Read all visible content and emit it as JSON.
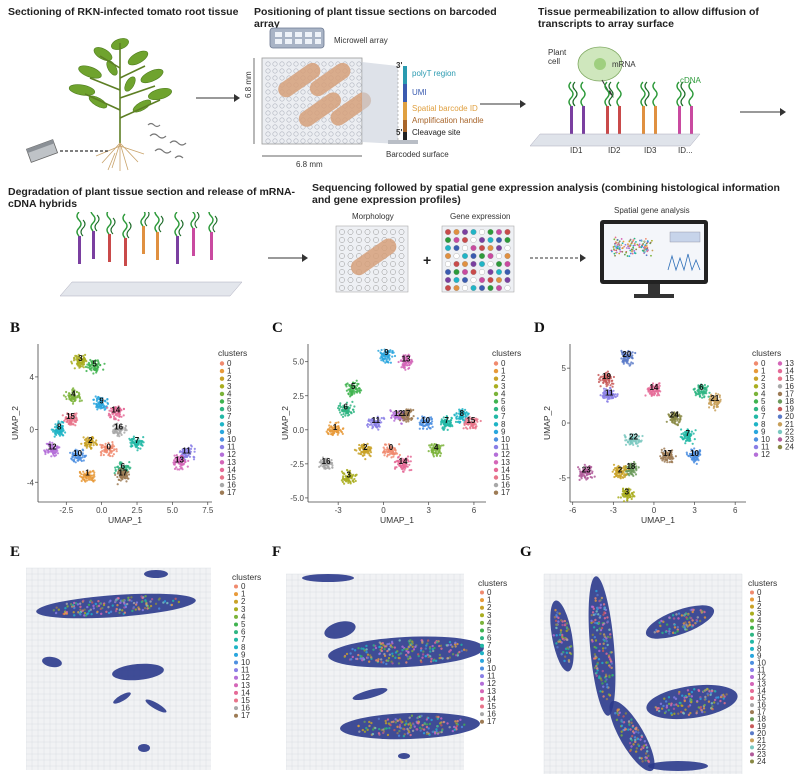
{
  "workflow": {
    "step1_title": "Sectioning of RKN-infected tomato root tissue",
    "step2_title": "Positioning of plant tissue sections on barcoded array",
    "step3_title": "Tissue permeabilization to allow diffusion of transcripts to array surface",
    "step4_title": "Degradation of plant tissue section and release of mRNA-cDNA hybrids",
    "step5_title": "Sequencing followed by spatial gene expression analysis (combining histological information and gene expression profiles)",
    "microwell_label": "Microwell array",
    "dim_vertical": "6.8 mm",
    "dim_horizontal": "6.8 mm",
    "probe_3prime": "3'",
    "probe_5prime": "5'",
    "probe_parts": [
      "polyT region",
      "UMI",
      "Spatial barcode ID",
      "Amplification handle",
      "Cleavage site"
    ],
    "barcoded_surface": "Barcoded surface",
    "plant_cell": "Plant cell",
    "mrna": "mRNA",
    "cdna": "cDNA",
    "ids": [
      "ID1",
      "ID2",
      "ID3",
      "ID..."
    ],
    "morphology": "Morphology",
    "gene_expression": "Gene expression",
    "plus": "+",
    "spatial_gene_analysis": "Spatial gene analysis"
  },
  "panels": {
    "B": "B",
    "C": "C",
    "D": "D",
    "E": "E",
    "F": "F",
    "G": "G"
  },
  "legend_title": "clusters",
  "colors": {
    "palette": [
      "#f08a6e",
      "#e89a3a",
      "#c9a227",
      "#a9ad1f",
      "#7bb33a",
      "#3fb34f",
      "#2fb583",
      "#22b8a6",
      "#1fb4c6",
      "#2aa6de",
      "#4d8fe0",
      "#8a7fe6",
      "#b46fd8",
      "#d466b8",
      "#e56a97",
      "#e8748a",
      "#a8a8a8",
      "#9d7b55",
      "#6b9a5a",
      "#c85a5a",
      "#5a7ac8",
      "#c8a05a",
      "#7ac8c0",
      "#b05a9a",
      "#888844"
    ],
    "tissue_blue": "#2b3a8c",
    "grid": "#d6d9df"
  },
  "chart_data": [
    {
      "type": "scatter",
      "panel": "B",
      "xlabel": "UMAP_1",
      "ylabel": "UMAP_2",
      "xticks": [
        "-2.5",
        "0.0",
        "2.5",
        "5.0",
        "7.5"
      ],
      "yticks": [
        "4",
        "0",
        "-4"
      ],
      "legend": [
        "0",
        "1",
        "2",
        "3",
        "4",
        "5",
        "6",
        "7",
        "8",
        "9",
        "10",
        "11",
        "12",
        "13",
        "14",
        "15",
        "16",
        "17"
      ],
      "cluster_labels": [
        {
          "label": "0",
          "x": 0.5,
          "y": -1.5
        },
        {
          "label": "1",
          "x": -1.0,
          "y": -3.5
        },
        {
          "label": "2",
          "x": -0.8,
          "y": -1.0
        },
        {
          "label": "3",
          "x": -1.5,
          "y": 5.2
        },
        {
          "label": "4",
          "x": -2.0,
          "y": 2.5
        },
        {
          "label": "5",
          "x": -0.5,
          "y": 4.8
        },
        {
          "label": "6",
          "x": 1.5,
          "y": -3.0
        },
        {
          "label": "7",
          "x": 2.5,
          "y": -1.0
        },
        {
          "label": "8",
          "x": -3.0,
          "y": 0.0
        },
        {
          "label": "9",
          "x": 0.0,
          "y": 2.0
        },
        {
          "label": "10",
          "x": -1.7,
          "y": -2.0
        },
        {
          "label": "11",
          "x": 6.0,
          "y": -1.8
        },
        {
          "label": "12",
          "x": -3.5,
          "y": -1.5
        },
        {
          "label": "13",
          "x": 5.5,
          "y": -2.5
        },
        {
          "label": "14",
          "x": 1.0,
          "y": 1.3
        },
        {
          "label": "15",
          "x": -2.2,
          "y": 0.8
        },
        {
          "label": "16",
          "x": 1.2,
          "y": 0.0
        },
        {
          "label": "17",
          "x": 1.5,
          "y": -3.5
        }
      ]
    },
    {
      "type": "scatter",
      "panel": "C",
      "xlabel": "UMAP_1",
      "ylabel": "UMAP_2",
      "xticks": [
        "-3",
        "0",
        "3",
        "6"
      ],
      "yticks": [
        "5.0",
        "2.5",
        "0.0",
        "-2.5",
        "-5.0"
      ],
      "legend": [
        "0",
        "1",
        "2",
        "3",
        "4",
        "5",
        "6",
        "7",
        "8",
        "9",
        "10",
        "11",
        "12",
        "13",
        "14",
        "15",
        "16",
        "17"
      ],
      "cluster_labels": [
        {
          "label": "0",
          "x": 0.5,
          "y": -1.5
        },
        {
          "label": "1",
          "x": -3.2,
          "y": 0.0
        },
        {
          "label": "2",
          "x": -1.2,
          "y": -1.5
        },
        {
          "label": "3",
          "x": -2.3,
          "y": -3.5
        },
        {
          "label": "4",
          "x": 3.5,
          "y": -1.5
        },
        {
          "label": "5",
          "x": -2.0,
          "y": 3.0
        },
        {
          "label": "6",
          "x": -2.5,
          "y": 1.5
        },
        {
          "label": "7",
          "x": 4.2,
          "y": 0.5
        },
        {
          "label": "8",
          "x": 5.2,
          "y": 1.0
        },
        {
          "label": "9",
          "x": 0.2,
          "y": 5.5
        },
        {
          "label": "10",
          "x": 2.8,
          "y": 0.5
        },
        {
          "label": "11",
          "x": -0.5,
          "y": 0.5
        },
        {
          "label": "12",
          "x": 1.0,
          "y": 1.0
        },
        {
          "label": "13",
          "x": 1.5,
          "y": 5.0
        },
        {
          "label": "14",
          "x": 1.3,
          "y": -2.5
        },
        {
          "label": "15",
          "x": 5.8,
          "y": 0.5
        },
        {
          "label": "16",
          "x": -3.8,
          "y": -2.5
        },
        {
          "label": "17",
          "x": 1.5,
          "y": 1.0
        }
      ]
    },
    {
      "type": "scatter",
      "panel": "D",
      "xlabel": "UMAP_1",
      "ylabel": "UMAP_2",
      "xticks": [
        "-6",
        "-3",
        "0",
        "3",
        "6"
      ],
      "yticks": [
        "5",
        "0",
        "-5"
      ],
      "legend": [
        "0",
        "1",
        "2",
        "3",
        "4",
        "5",
        "6",
        "7",
        "8",
        "9",
        "10",
        "11",
        "12",
        "13",
        "14",
        "15",
        "16",
        "17",
        "18",
        "19",
        "20",
        "21",
        "22",
        "23",
        "24"
      ],
      "cluster_labels": [
        {
          "label": "20",
          "x": -2.0,
          "y": 6.0
        },
        {
          "label": "19",
          "x": -3.5,
          "y": 4.0
        },
        {
          "label": "11",
          "x": -3.3,
          "y": 2.5
        },
        {
          "label": "14",
          "x": 0.0,
          "y": 3.0
        },
        {
          "label": "24",
          "x": 1.5,
          "y": 0.5
        },
        {
          "label": "21",
          "x": 4.5,
          "y": 2.0
        },
        {
          "label": "22",
          "x": -1.5,
          "y": -1.5
        },
        {
          "label": "7",
          "x": 2.5,
          "y": -1.2
        },
        {
          "label": "17",
          "x": 1.0,
          "y": -3.0
        },
        {
          "label": "10",
          "x": 3.0,
          "y": -3.0
        },
        {
          "label": "18",
          "x": -1.7,
          "y": -4.2
        },
        {
          "label": "2",
          "x": -2.5,
          "y": -4.5
        },
        {
          "label": "3",
          "x": -2.0,
          "y": -6.5
        },
        {
          "label": "23",
          "x": -5.0,
          "y": -4.5
        },
        {
          "label": "6",
          "x": 3.5,
          "y": 3.0
        }
      ]
    }
  ],
  "tissue_legends": {
    "E": [
      "0",
      "1",
      "2",
      "3",
      "4",
      "5",
      "6",
      "7",
      "8",
      "9",
      "10",
      "11",
      "12",
      "13",
      "14",
      "15",
      "16",
      "17"
    ],
    "F": [
      "0",
      "1",
      "2",
      "3",
      "4",
      "5",
      "6",
      "7",
      "8",
      "9",
      "10",
      "11",
      "12",
      "13",
      "14",
      "15",
      "16",
      "17"
    ],
    "G": [
      "0",
      "1",
      "2",
      "3",
      "4",
      "5",
      "6",
      "7",
      "8",
      "9",
      "10",
      "11",
      "12",
      "13",
      "14",
      "15",
      "16",
      "17",
      "18",
      "19",
      "20",
      "21",
      "22",
      "23",
      "24"
    ]
  }
}
